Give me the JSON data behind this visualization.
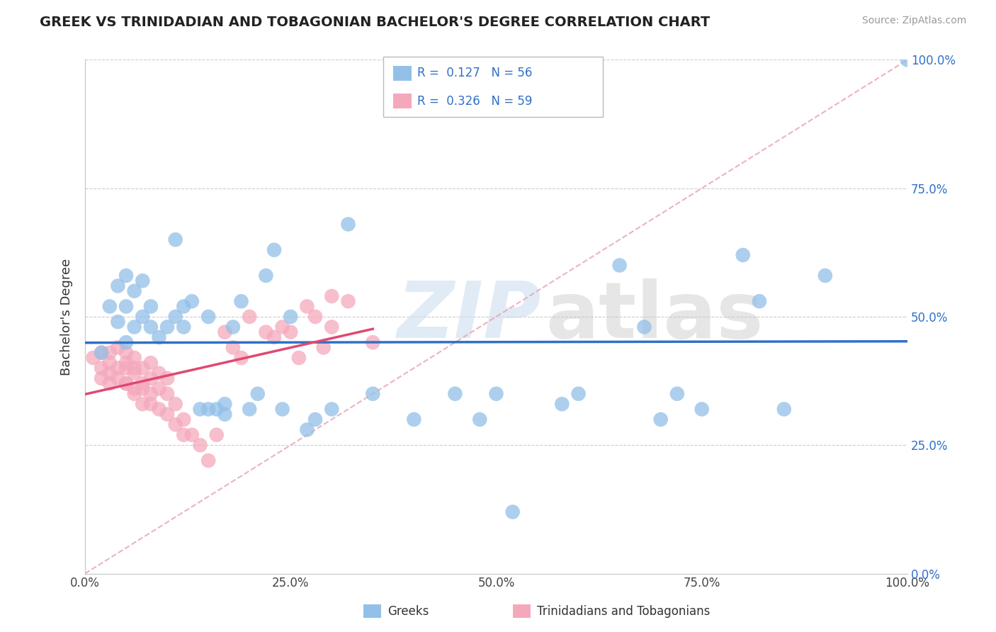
{
  "title": "GREEK VS TRINIDADIAN AND TOBAGONIAN BACHELOR'S DEGREE CORRELATION CHART",
  "source": "Source: ZipAtlas.com",
  "ylabel": "Bachelor's Degree",
  "xlim": [
    0,
    1
  ],
  "ylim": [
    0,
    1
  ],
  "xticks": [
    0.0,
    0.25,
    0.5,
    0.75,
    1.0
  ],
  "yticks": [
    0.0,
    0.25,
    0.5,
    0.75,
    1.0
  ],
  "xtick_labels": [
    "0.0%",
    "25.0%",
    "50.0%",
    "75.0%",
    "100.0%"
  ],
  "ytick_labels": [
    "0.0%",
    "25.0%",
    "50.0%",
    "75.0%",
    "100.0%"
  ],
  "greek_R": 0.127,
  "greek_N": 56,
  "trini_R": 0.326,
  "trini_N": 59,
  "blue_color": "#92C0E8",
  "pink_color": "#F5A8BC",
  "blue_line_color": "#3070C8",
  "pink_line_color": "#E04870",
  "legend_color": "#3070C8",
  "greek_x": [
    0.02,
    0.03,
    0.04,
    0.04,
    0.05,
    0.05,
    0.05,
    0.06,
    0.06,
    0.07,
    0.07,
    0.08,
    0.08,
    0.09,
    0.1,
    0.11,
    0.11,
    0.12,
    0.12,
    0.13,
    0.14,
    0.15,
    0.15,
    0.16,
    0.17,
    0.17,
    0.18,
    0.19,
    0.2,
    0.21,
    0.22,
    0.23,
    0.24,
    0.25,
    0.27,
    0.28,
    0.3,
    0.32,
    0.35,
    0.4,
    0.45,
    0.48,
    0.5,
    0.52,
    0.58,
    0.6,
    0.65,
    0.68,
    0.7,
    0.72,
    0.75,
    0.8,
    0.82,
    0.85,
    0.9,
    1.0
  ],
  "greek_y": [
    0.43,
    0.52,
    0.49,
    0.56,
    0.45,
    0.52,
    0.58,
    0.48,
    0.55,
    0.5,
    0.57,
    0.52,
    0.48,
    0.46,
    0.48,
    0.65,
    0.5,
    0.52,
    0.48,
    0.53,
    0.32,
    0.32,
    0.5,
    0.32,
    0.33,
    0.31,
    0.48,
    0.53,
    0.32,
    0.35,
    0.58,
    0.63,
    0.32,
    0.5,
    0.28,
    0.3,
    0.32,
    0.68,
    0.35,
    0.3,
    0.35,
    0.3,
    0.35,
    0.12,
    0.33,
    0.35,
    0.6,
    0.48,
    0.3,
    0.35,
    0.32,
    0.62,
    0.53,
    0.32,
    0.58,
    1.0
  ],
  "trini_x": [
    0.01,
    0.02,
    0.02,
    0.02,
    0.03,
    0.03,
    0.03,
    0.03,
    0.04,
    0.04,
    0.04,
    0.05,
    0.05,
    0.05,
    0.05,
    0.05,
    0.06,
    0.06,
    0.06,
    0.06,
    0.06,
    0.07,
    0.07,
    0.07,
    0.07,
    0.08,
    0.08,
    0.08,
    0.08,
    0.09,
    0.09,
    0.09,
    0.1,
    0.1,
    0.1,
    0.11,
    0.11,
    0.12,
    0.12,
    0.13,
    0.14,
    0.15,
    0.16,
    0.17,
    0.18,
    0.19,
    0.2,
    0.22,
    0.23,
    0.24,
    0.25,
    0.26,
    0.27,
    0.28,
    0.29,
    0.3,
    0.3,
    0.32,
    0.35
  ],
  "trini_y": [
    0.42,
    0.38,
    0.43,
    0.4,
    0.37,
    0.41,
    0.43,
    0.39,
    0.4,
    0.44,
    0.38,
    0.37,
    0.4,
    0.43,
    0.37,
    0.41,
    0.35,
    0.39,
    0.42,
    0.36,
    0.4,
    0.33,
    0.37,
    0.4,
    0.36,
    0.35,
    0.38,
    0.41,
    0.33,
    0.32,
    0.36,
    0.39,
    0.31,
    0.35,
    0.38,
    0.29,
    0.33,
    0.27,
    0.3,
    0.27,
    0.25,
    0.22,
    0.27,
    0.47,
    0.44,
    0.42,
    0.5,
    0.47,
    0.46,
    0.48,
    0.47,
    0.42,
    0.52,
    0.5,
    0.44,
    0.54,
    0.48,
    0.53,
    0.45
  ]
}
